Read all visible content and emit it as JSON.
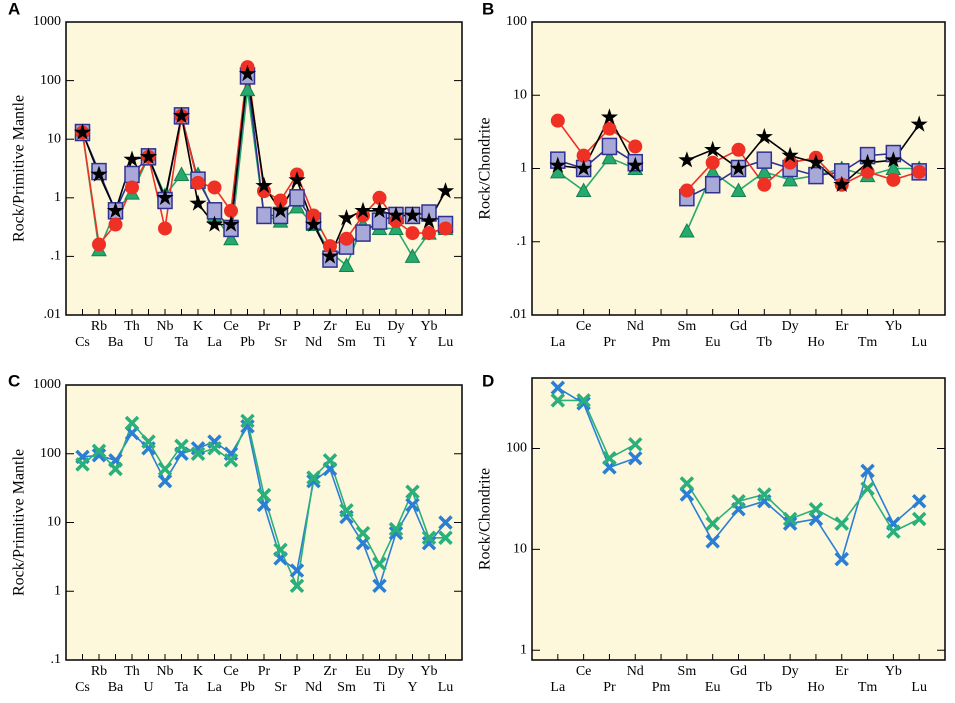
{
  "chart_data": [
    {
      "label": "A",
      "type": "line",
      "ylabel": "Rock/Primitive Mantle",
      "log_scale": true,
      "ylim": [
        0.01,
        1000
      ],
      "yticks": [
        {
          "value": 0.01,
          "label": ".01"
        },
        {
          "value": 0.1,
          "label": ".1"
        },
        1,
        10,
        100,
        1000
      ],
      "categories": [
        "Cs",
        "Rb",
        "Ba",
        "Th",
        "U",
        "Nb",
        "Ta",
        "K",
        "La",
        "Ce",
        "Pb",
        "Pr",
        "Sr",
        "P",
        "Nd",
        "Zr",
        "Sm",
        "Eu",
        "Ti",
        "Dy",
        "Y",
        "Yb",
        "Lu"
      ],
      "series": [
        {
          "color": "#26a96c",
          "marker": "triangle",
          "values": [
            13,
            0.13,
            0.6,
            1.2,
            5,
            1.1,
            2.5,
            2.5,
            0.5,
            0.2,
            70,
            0.5,
            0.4,
            0.7,
            0.35,
            0.12,
            0.07,
            0.35,
            0.3,
            0.3,
            0.1,
            0.25,
            0.3
          ]
        },
        {
          "color": "#2e3192",
          "fill": "#a9a9d9",
          "marker": "square",
          "values": [
            13,
            2.8,
            0.6,
            2.5,
            5,
            0.9,
            25,
            2,
            0.6,
            0.3,
            120,
            0.5,
            0.5,
            1.0,
            0.4,
            0.09,
            0.15,
            0.25,
            0.4,
            0.5,
            0.5,
            0.55,
            0.35
          ]
        },
        {
          "color": "#ee3124",
          "marker": "circle",
          "values": [
            13,
            0.16,
            0.35,
            1.5,
            5,
            0.3,
            25,
            1.8,
            1.5,
            0.6,
            170,
            1.3,
            0.9,
            2.5,
            0.5,
            0.15,
            0.2,
            0.5,
            1.0,
            0.4,
            0.25,
            0.25,
            0.3
          ]
        },
        {
          "color": "#000000",
          "marker": "star",
          "values": [
            13,
            2.5,
            0.6,
            4.5,
            5,
            1,
            25,
            0.8,
            0.35,
            0.35,
            130,
            1.6,
            0.6,
            2,
            0.35,
            0.1,
            0.45,
            0.6,
            0.6,
            0.5,
            0.5,
            0.4,
            1.3
          ]
        }
      ]
    },
    {
      "label": "B",
      "type": "line",
      "ylabel": "Rock/Chondrite",
      "log_scale": true,
      "ylim": [
        0.01,
        100
      ],
      "yticks": [
        {
          "value": 0.01,
          "label": ".01"
        },
        {
          "value": 0.1,
          "label": ".1"
        },
        1,
        10,
        100
      ],
      "categories": [
        "La",
        "Ce",
        "Pr",
        "Nd",
        "Pm",
        "Sm",
        "Eu",
        "Gd",
        "Tb",
        "Dy",
        "Ho",
        "Er",
        "Tm",
        "Yb",
        "Lu"
      ],
      "series": [
        {
          "color": "#26a96c",
          "marker": "triangle",
          "values": [
            0.9,
            0.5,
            1.4,
            1.0,
            null,
            0.14,
            0.9,
            0.5,
            0.9,
            0.7,
            0.8,
            1.0,
            0.8,
            1.0,
            1.0
          ]
        },
        {
          "color": "#2e3192",
          "fill": "#a9a9d9",
          "marker": "square",
          "values": [
            1.3,
            1.0,
            2.0,
            1.2,
            null,
            0.4,
            0.6,
            1.0,
            1.3,
            1.0,
            0.8,
            0.9,
            1.5,
            1.6,
            0.9
          ]
        },
        {
          "color": "#ee3124",
          "marker": "circle",
          "values": [
            4.5,
            1.5,
            3.5,
            2,
            null,
            0.5,
            1.2,
            1.8,
            0.6,
            1.2,
            1.4,
            0.6,
            0.9,
            0.7,
            0.9
          ]
        },
        {
          "color": "#000000",
          "marker": "star",
          "values": [
            1.1,
            1.0,
            5,
            1.1,
            null,
            1.3,
            1.8,
            1.0,
            2.7,
            1.5,
            1.2,
            0.6,
            1.2,
            1.3,
            4
          ]
        }
      ]
    },
    {
      "label": "C",
      "type": "line",
      "ylabel": "Rock/Primitive Mantle",
      "log_scale": true,
      "ylim": [
        0.1,
        1000
      ],
      "yticks": [
        {
          "value": 0.1,
          "label": ".1"
        },
        1,
        10,
        100,
        1000
      ],
      "categories": [
        "Cs",
        "Rb",
        "Ba",
        "Th",
        "U",
        "Nb",
        "Ta",
        "K",
        "La",
        "Ce",
        "Pb",
        "Pr",
        "Sr",
        "P",
        "Nd",
        "Zr",
        "Sm",
        "Eu",
        "Ti",
        "Dy",
        "Y",
        "Yb",
        "Lu"
      ],
      "series": [
        {
          "color": "#2a7fd4",
          "marker": "x",
          "values": [
            90,
            95,
            80,
            200,
            120,
            40,
            100,
            120,
            150,
            100,
            250,
            18,
            3,
            2,
            40,
            60,
            12,
            5,
            1.2,
            7,
            18,
            5,
            10
          ]
        },
        {
          "color": "#2ab07a",
          "marker": "x",
          "values": [
            70,
            110,
            60,
            280,
            150,
            60,
            130,
            100,
            120,
            80,
            300,
            25,
            4,
            1.2,
            45,
            80,
            15,
            7,
            2.5,
            8,
            28,
            6,
            6
          ]
        }
      ]
    },
    {
      "label": "D",
      "type": "line",
      "ylabel": "Rock/Chondrite",
      "log_scale": true,
      "ylim": [
        0.8,
        500
      ],
      "yticks": [
        1,
        10,
        100
      ],
      "categories": [
        "La",
        "Ce",
        "Pr",
        "Nd",
        "Pm",
        "Sm",
        "Eu",
        "Gd",
        "Tb",
        "Dy",
        "Ho",
        "Er",
        "Tm",
        "Yb",
        "Lu"
      ],
      "series": [
        {
          "color": "#2a7fd4",
          "marker": "x",
          "values": [
            400,
            280,
            65,
            80,
            null,
            35,
            12,
            25,
            30,
            18,
            20,
            8,
            60,
            18,
            30
          ]
        },
        {
          "color": "#2ab07a",
          "marker": "x",
          "values": [
            300,
            300,
            80,
            110,
            null,
            45,
            18,
            30,
            35,
            20,
            25,
            18,
            40,
            15,
            20
          ]
        }
      ]
    }
  ]
}
